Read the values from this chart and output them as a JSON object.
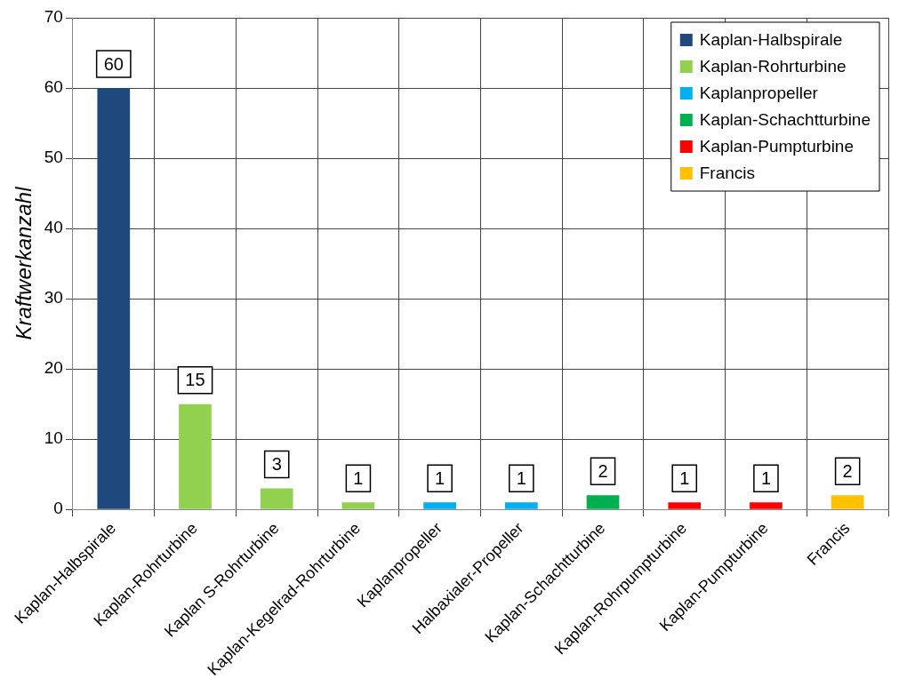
{
  "chart_data": {
    "type": "bar",
    "ylabel": "Kraftwerkanzahl",
    "categories": [
      "Kaplan-Halbspirale",
      "Kaplan-Rohrturbine",
      "Kaplan S-Rohrturbine",
      "Kaplan-Kegelrad-Rohrturbine",
      "Kaplanpropeller",
      "Halbaxialer-Propeller",
      "Kaplan-Schachtturbine",
      "Kaplan-Rohrpumpturbine",
      "Kaplan-Pumpturbine",
      "Francis"
    ],
    "series": [
      {
        "name": "Kaplan-Halbspirale",
        "color": "#1f497d",
        "values": [
          60,
          null,
          null,
          null,
          null,
          null,
          null,
          null,
          null,
          null
        ]
      },
      {
        "name": "Kaplan-Rohrturbine",
        "color": "#92d050",
        "values": [
          null,
          15,
          3,
          1,
          null,
          null,
          null,
          null,
          null,
          null
        ]
      },
      {
        "name": "Kaplanpropeller",
        "color": "#00b0f0",
        "values": [
          null,
          null,
          null,
          null,
          1,
          1,
          null,
          null,
          null,
          null
        ]
      },
      {
        "name": "Kaplan-Schachtturbine",
        "color": "#00b050",
        "values": [
          null,
          null,
          null,
          null,
          null,
          null,
          2,
          null,
          null,
          null
        ]
      },
      {
        "name": "Kaplan-Pumpturbine",
        "color": "#ff0000",
        "values": [
          null,
          null,
          null,
          null,
          null,
          null,
          null,
          1,
          1,
          null
        ]
      },
      {
        "name": "Francis",
        "color": "#ffc000",
        "values": [
          null,
          null,
          null,
          null,
          null,
          null,
          null,
          null,
          null,
          2
        ]
      }
    ],
    "ylim": [
      0,
      70
    ],
    "yticks": [
      0,
      10,
      20,
      30,
      40,
      50,
      60,
      70
    ],
    "grid": true,
    "legend": "top right",
    "data_labels": true
  }
}
